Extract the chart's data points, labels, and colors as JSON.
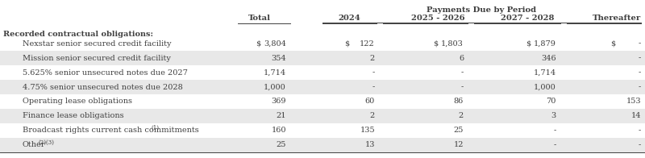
{
  "title_payments": "Payments Due by Period",
  "col_headers": [
    "Total",
    "2024",
    "2025 - 2026",
    "2027 - 2028",
    "Thereafter"
  ],
  "section_header": "Recorded contractual obligations:",
  "rows": [
    {
      "label": "Nexstar senior secured credit facility",
      "dollar_signs": [
        true,
        true,
        true,
        true,
        true
      ],
      "values": [
        "3,804",
        "122",
        "1,803",
        "1,879",
        "-"
      ]
    },
    {
      "label": "Mission senior secured credit facility",
      "dollar_signs": [
        false,
        false,
        false,
        false,
        false
      ],
      "values": [
        "354",
        "2",
        "6",
        "346",
        "-"
      ]
    },
    {
      "label": "5.625% senior unsecured notes due 2027",
      "dollar_signs": [
        false,
        false,
        false,
        false,
        false
      ],
      "values": [
        "1,714",
        "-",
        "-",
        "1,714",
        "-"
      ]
    },
    {
      "label": "4.75% senior unsecured notes due 2028",
      "dollar_signs": [
        false,
        false,
        false,
        false,
        false
      ],
      "values": [
        "1,000",
        "-",
        "-",
        "1,000",
        "-"
      ]
    },
    {
      "label": "Operating lease obligations",
      "dollar_signs": [
        false,
        false,
        false,
        false,
        false
      ],
      "values": [
        "369",
        "60",
        "86",
        "70",
        "153"
      ]
    },
    {
      "label": "Finance lease obligations",
      "dollar_signs": [
        false,
        false,
        false,
        false,
        false
      ],
      "values": [
        "21",
        "2",
        "2",
        "3",
        "14"
      ]
    },
    {
      "label": "Broadcast rights current cash commitments",
      "superscript": "(1)",
      "dollar_signs": [
        false,
        false,
        false,
        false,
        false
      ],
      "values": [
        "160",
        "135",
        "25",
        "-",
        "-"
      ]
    },
    {
      "label": "Other",
      "superscript": "(2)(3)",
      "dollar_signs": [
        false,
        false,
        false,
        false,
        false
      ],
      "values": [
        "25",
        "13",
        "12",
        "-",
        "-"
      ]
    }
  ],
  "row_shading": [
    false,
    true,
    false,
    true,
    false,
    true,
    false,
    true
  ],
  "shading_color": "#e8e8e8",
  "bg_color": "#ffffff",
  "text_color": "#404040",
  "font_size": 7.0,
  "header_font_size": 7.2
}
